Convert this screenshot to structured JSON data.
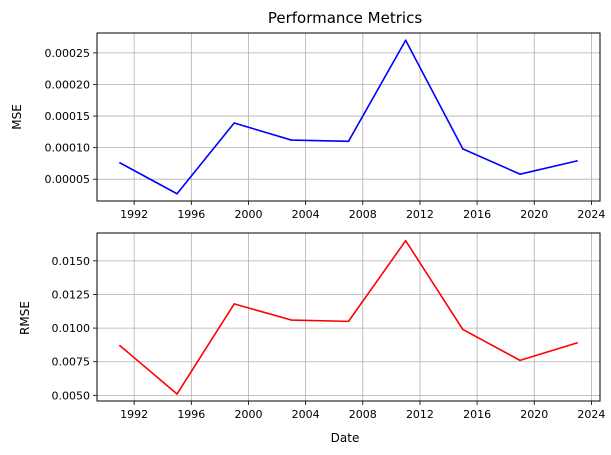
{
  "chart_data": [
    {
      "type": "line",
      "title": "Performance Metrics",
      "xlabel": "",
      "ylabel": "MSE",
      "x": [
        1991,
        1995,
        1999,
        2003,
        2007,
        2011,
        2015,
        2019,
        2023
      ],
      "xlim": [
        1989.4,
        2024.6
      ],
      "ylim": [
        1.55e-05,
        0.0002815
      ],
      "xticks": [
        1992,
        1996,
        2000,
        2004,
        2008,
        2012,
        2016,
        2020,
        2024
      ],
      "yticks": [
        5e-05,
        0.0001,
        0.00015,
        0.0002,
        0.00025
      ],
      "ytick_labels": [
        "0.00005",
        "0.00010",
        "0.00015",
        "0.00020",
        "0.00025"
      ],
      "grid": true,
      "series": [
        {
          "color": "#0000ff",
          "values": [
            7.6e-05,
            2.7e-05,
            0.000139,
            0.000112,
            0.00011,
            0.00027,
            9.8e-05,
            5.8e-05,
            7.9e-05
          ]
        }
      ]
    },
    {
      "type": "line",
      "title": "",
      "xlabel": "Date",
      "ylabel": "RMSE",
      "x": [
        1991,
        1995,
        1999,
        2003,
        2007,
        2011,
        2015,
        2019,
        2023
      ],
      "xlim": [
        1989.4,
        2024.6
      ],
      "ylim": [
        0.00458,
        0.01707
      ],
      "xticks": [
        1992,
        1996,
        2000,
        2004,
        2008,
        2012,
        2016,
        2020,
        2024
      ],
      "yticks": [
        0.005,
        0.0075,
        0.01,
        0.0125,
        0.015
      ],
      "ytick_labels": [
        "0.0050",
        "0.0075",
        "0.0100",
        "0.0125",
        "0.0150"
      ],
      "grid": true,
      "series": [
        {
          "color": "#ff0000",
          "values": [
            0.0087,
            0.0051,
            0.0118,
            0.0106,
            0.0105,
            0.0165,
            0.0099,
            0.0076,
            0.0089
          ]
        }
      ]
    }
  ]
}
